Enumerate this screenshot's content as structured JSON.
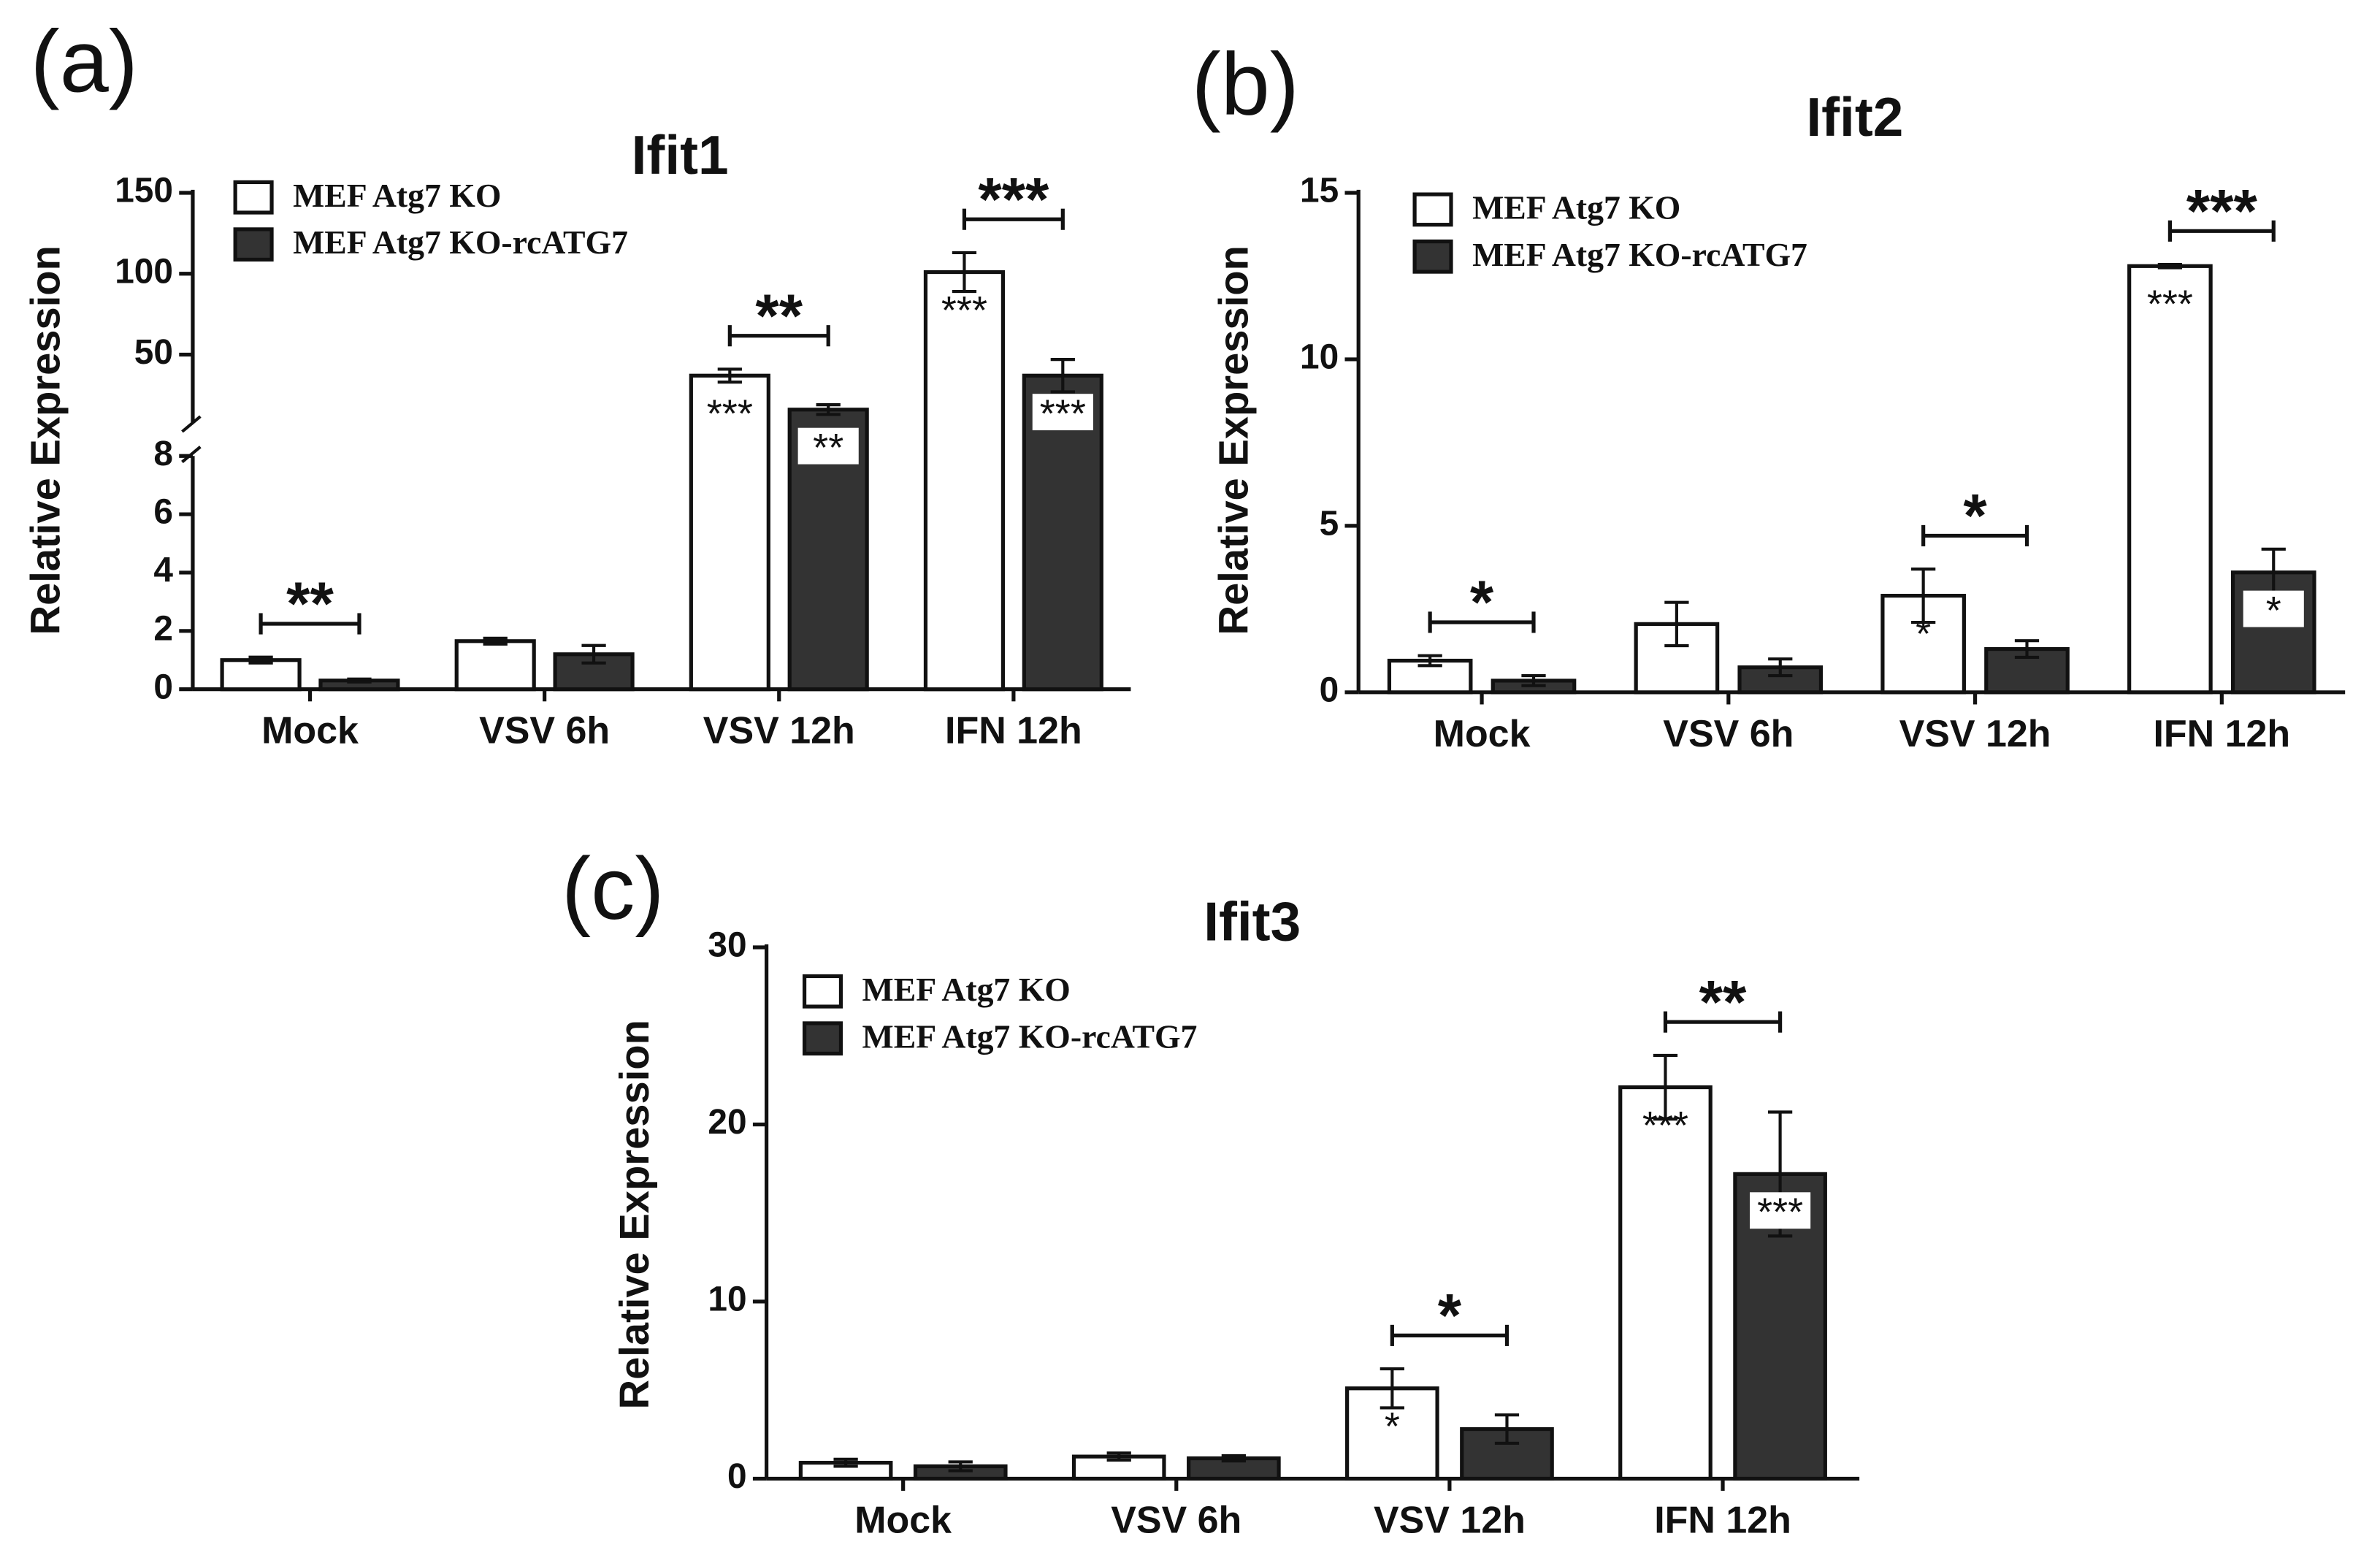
{
  "chart_data": [
    {
      "type": "bar",
      "panel_label": "(a)",
      "title": "Ifit1",
      "y_label": "Relative Expression",
      "categories": [
        "Mock",
        "VSV 6h",
        "VSV 12h",
        "IFN 12h"
      ],
      "ylim": [
        0,
        150
      ],
      "axis_break": 8,
      "yticks": [
        0,
        2,
        4,
        6,
        8,
        50,
        100,
        150
      ],
      "series": [
        {
          "name": "MEF Atg7 KO",
          "color": "#ffffff",
          "values": [
            1.0,
            1.65,
            37,
            101
          ],
          "errors": [
            0.1,
            0.1,
            4,
            12
          ],
          "significance": [
            null,
            null,
            "***",
            "***"
          ]
        },
        {
          "name": "MEF Atg7 KO-rcATG7",
          "color": "#333333",
          "values": [
            0.3,
            1.2,
            16,
            37
          ],
          "errors": [
            0.05,
            0.3,
            3,
            10
          ],
          "significance": [
            null,
            null,
            "**",
            "***"
          ]
        }
      ],
      "bracket_labels": [
        "**",
        null,
        "**",
        "***"
      ]
    },
    {
      "type": "bar",
      "panel_label": "(b)",
      "title": "Ifit2",
      "y_label": "Relative Expression",
      "categories": [
        "Mock",
        "VSV 6h",
        "VSV 12h",
        "IFN 12h"
      ],
      "ylim": [
        0,
        15
      ],
      "yticks": [
        0,
        5,
        10,
        15
      ],
      "series": [
        {
          "name": "MEF Atg7 KO",
          "color": "#ffffff",
          "values": [
            0.95,
            2.05,
            2.9,
            12.8
          ],
          "errors": [
            0.15,
            0.65,
            0.8,
            0.05
          ],
          "significance": [
            null,
            null,
            "*",
            "***"
          ]
        },
        {
          "name": "MEF Atg7 KO-rcATG7",
          "color": "#333333",
          "values": [
            0.35,
            0.75,
            1.3,
            3.6
          ],
          "errors": [
            0.15,
            0.25,
            0.25,
            0.7
          ],
          "significance": [
            null,
            null,
            null,
            "*"
          ]
        }
      ],
      "bracket_labels": [
        "*",
        null,
        "*",
        "***"
      ]
    },
    {
      "type": "bar",
      "panel_label": "(c)",
      "title": "Ifit3",
      "y_label": "Relative Expression",
      "categories": [
        "Mock",
        "VSV 6h",
        "VSV 12h",
        "IFN 12h"
      ],
      "ylim": [
        0,
        30
      ],
      "yticks": [
        0,
        10,
        20,
        30
      ],
      "series": [
        {
          "name": "MEF Atg7 KO",
          "color": "#ffffff",
          "values": [
            0.9,
            1.25,
            5.1,
            22.1
          ],
          "errors": [
            0.2,
            0.2,
            1.1,
            1.8
          ],
          "significance": [
            null,
            null,
            "*",
            "***"
          ]
        },
        {
          "name": "MEF Atg7 KO-rcATG7",
          "color": "#333333",
          "values": [
            0.7,
            1.15,
            2.8,
            17.2
          ],
          "errors": [
            0.25,
            0.15,
            0.8,
            3.5
          ],
          "significance": [
            null,
            null,
            null,
            "***"
          ]
        }
      ],
      "bracket_labels": [
        null,
        null,
        "*",
        "**"
      ]
    }
  ]
}
